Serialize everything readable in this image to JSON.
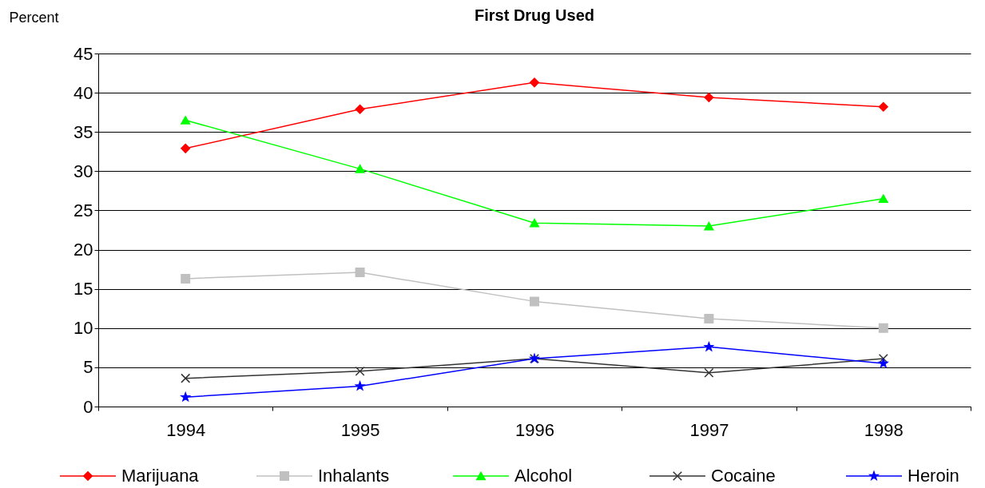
{
  "chart_data": {
    "type": "line",
    "title": "First Drug Used",
    "ylabel": "Percent",
    "categories": [
      "1994",
      "1995",
      "1996",
      "1997",
      "1998"
    ],
    "ylim": [
      0,
      45
    ],
    "yticks": [
      0,
      5,
      10,
      15,
      20,
      25,
      30,
      35,
      40,
      45
    ],
    "grid": "y",
    "legend": "bottom",
    "series": [
      {
        "name": "Marijuana",
        "color": "#ff0000",
        "marker": "diamond",
        "values": [
          32.9,
          37.9,
          41.3,
          39.4,
          38.2
        ]
      },
      {
        "name": "Inhalants",
        "color": "#c0c0c0",
        "marker": "square",
        "values": [
          16.3,
          17.1,
          13.4,
          11.2,
          10.0
        ]
      },
      {
        "name": "Alcohol",
        "color": "#00ff00",
        "marker": "triangle",
        "values": [
          36.5,
          30.3,
          23.4,
          23.0,
          26.5
        ]
      },
      {
        "name": "Cocaine",
        "color": "#333333",
        "marker": "cross",
        "values": [
          3.6,
          4.5,
          6.1,
          4.3,
          6.1
        ]
      },
      {
        "name": "Heroin",
        "color": "#0000ff",
        "marker": "star",
        "values": [
          1.2,
          2.6,
          6.1,
          7.6,
          5.5
        ]
      }
    ]
  }
}
